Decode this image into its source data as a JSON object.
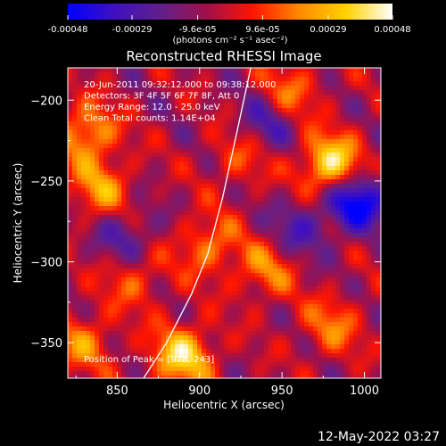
{
  "chart_data": {
    "type": "heatmap",
    "title": "Reconstructed RHESSI Image",
    "xlabel": "Heliocentric X (arcsec)",
    "ylabel": "Heliocentric Y (arcsec)",
    "xlim": [
      820,
      1010
    ],
    "ylim": [
      -372,
      -180
    ],
    "x_ticks": [
      850,
      900,
      950,
      1000
    ],
    "y_ticks": [
      -200,
      -250,
      -300,
      -350
    ],
    "colorbar": {
      "ticks": [
        "-0.00048",
        "-0.00029",
        "-9.6e-05",
        "9.6e-05",
        "0.00029",
        "0.00048"
      ],
      "tick_values": [
        -0.00048,
        -0.00029,
        -9.6e-05,
        9.6e-05,
        0.00029,
        0.00048
      ],
      "range": [
        -0.00048,
        0.00048
      ],
      "unit_label": "(photons cm⁻² s⁻¹ asec⁻²)",
      "colors": [
        "#0000ff",
        "#4010c0",
        "#60208a",
        "#a0104a",
        "#ff1500",
        "#ff8a00",
        "#ffd200",
        "#ffffff"
      ]
    },
    "annotations": [
      "20-Jun-2011 09:32:12.000 to 09:38:12.000",
      "Detectors: 3F 4F 5F 6F 7F 8F, Att 0",
      "Energy Range: 12.0 - 25.0 keV",
      "Clean    Total counts: 1.14E+04"
    ],
    "peak_label": "Position of Peak = [978,-243]",
    "peak_position": [
      978,
      -243
    ],
    "limb_curve": [
      [
        866,
        -372
      ],
      [
        880,
        -350
      ],
      [
        895,
        -320
      ],
      [
        905,
        -295
      ],
      [
        914,
        -260
      ],
      [
        923,
        -218
      ],
      [
        931,
        -180
      ]
    ],
    "hotspots": [
      {
        "x": 980,
        "y": -240,
        "value": 0.00048
      },
      {
        "x": 890,
        "y": -358,
        "value": 0.00042
      },
      {
        "x": 832,
        "y": -220,
        "value": 0.00032
      },
      {
        "x": 840,
        "y": -255,
        "value": 0.00028
      },
      {
        "x": 905,
        "y": -290,
        "value": 0.00025
      },
      {
        "x": 940,
        "y": -305,
        "value": 0.00024
      },
      {
        "x": 955,
        "y": -195,
        "value": 0.00022
      },
      {
        "x": 860,
        "y": -310,
        "value": 0.0002
      },
      {
        "x": 980,
        "y": -340,
        "value": 0.00022
      },
      {
        "x": 925,
        "y": -235,
        "value": 0.00018
      },
      {
        "x": 830,
        "y": -350,
        "value": 0.00024
      }
    ],
    "coldspots": [
      {
        "x": 995,
        "y": -262,
        "value": -0.00045
      },
      {
        "x": 940,
        "y": -215,
        "value": -0.00022
      },
      {
        "x": 855,
        "y": -285,
        "value": -0.0002
      },
      {
        "x": 960,
        "y": -280,
        "value": -0.0002
      }
    ]
  },
  "footer": {
    "timestamp": "12-May-2022 03:27"
  }
}
